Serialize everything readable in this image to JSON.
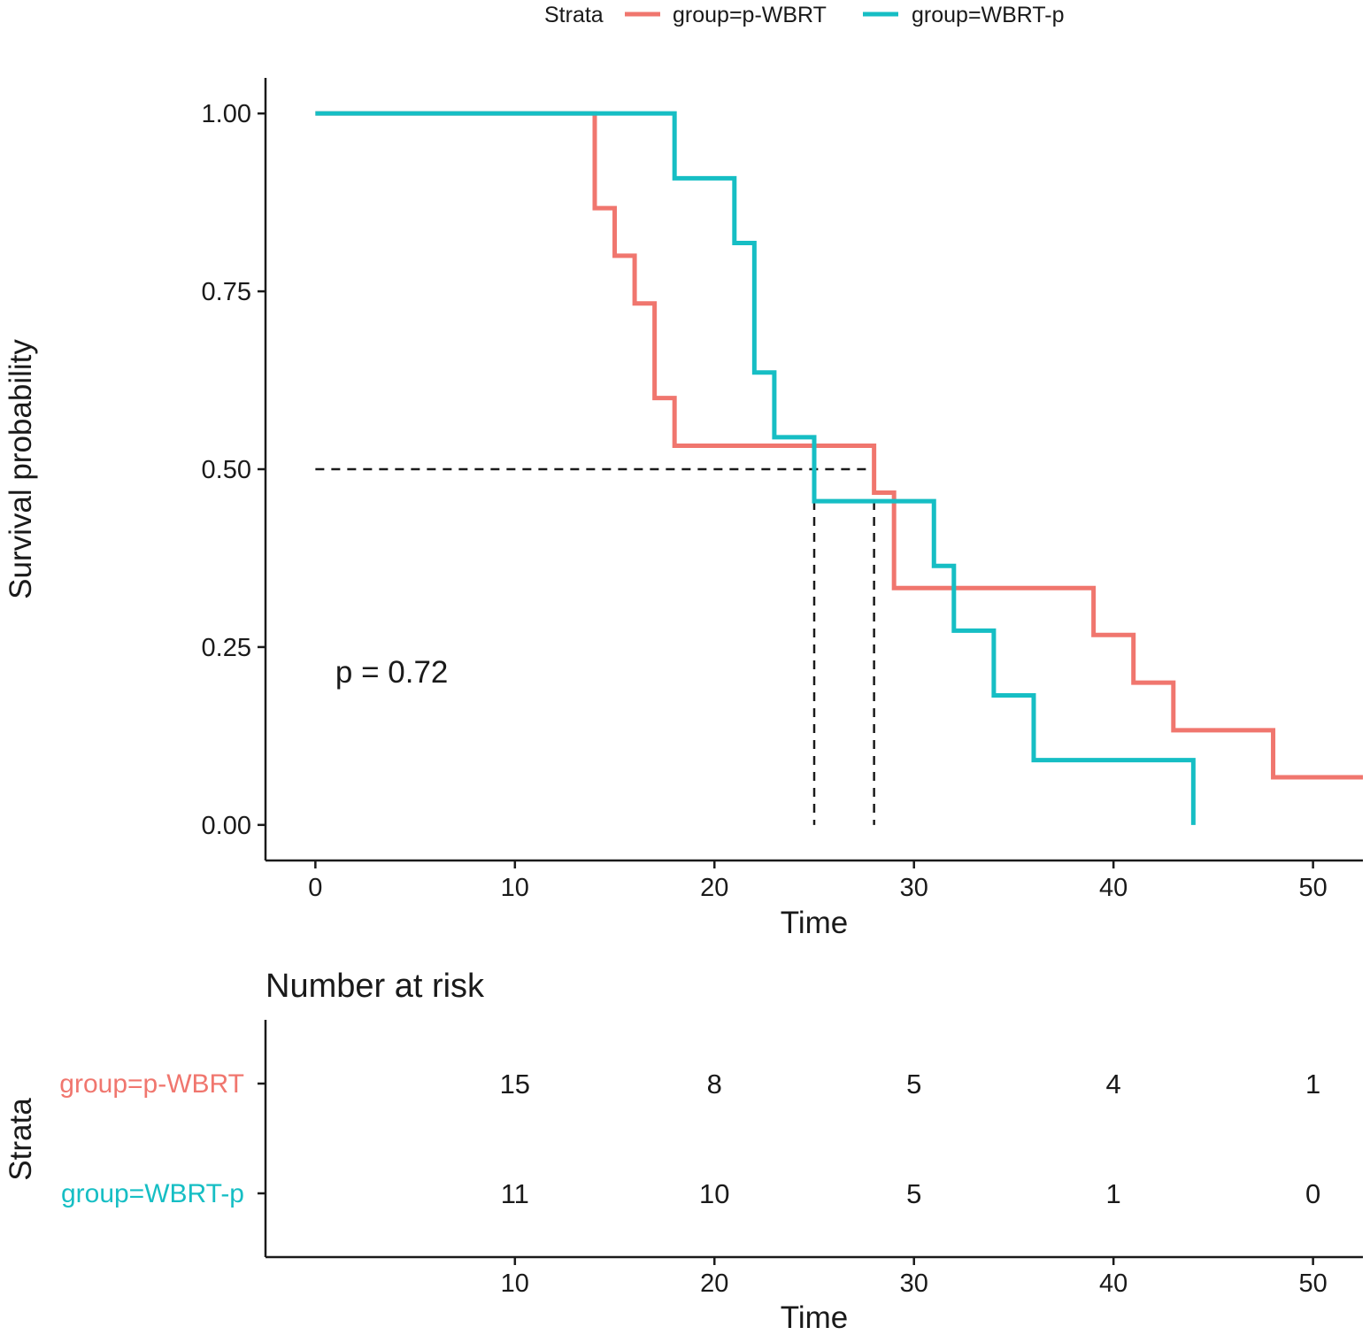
{
  "colors": {
    "p_wbrt": "#F0766E",
    "wbrt_p": "#16BEC4",
    "axis": "#1a1a1a",
    "median_line": "#1a1a1a"
  },
  "legend": {
    "title": "Strata",
    "entries": [
      "group=p-WBRT",
      "group=WBRT-p"
    ]
  },
  "chart_data": [
    {
      "type": "line",
      "subtype": "kaplan-meier-step",
      "xlabel": "Time",
      "ylabel": "Survival probability",
      "xlim": [
        -2.5,
        52.5
      ],
      "ylim": [
        -0.05,
        1.05
      ],
      "xticks": [
        0,
        10,
        20,
        30,
        40,
        50
      ],
      "xtick_labels": [
        "0",
        "10",
        "20",
        "30",
        "40",
        "50"
      ],
      "yticks": [
        0,
        0.25,
        0.5,
        0.75,
        1
      ],
      "ytick_labels": [
        "0.00",
        "0.25",
        "0.50",
        "0.75",
        "1.00"
      ],
      "grid": false,
      "legend_position": "top",
      "annotation": "p = 0.72",
      "annotation_at": [
        1,
        0.2
      ],
      "series": [
        {
          "name": "group=p-WBRT",
          "key": "p_wbrt",
          "steps": [
            [
              0,
              1.0
            ],
            [
              14,
              0.867
            ],
            [
              15,
              0.8
            ],
            [
              16,
              0.733
            ],
            [
              17,
              0.6
            ],
            [
              18,
              0.533
            ],
            [
              28,
              0.467
            ],
            [
              29,
              0.333
            ],
            [
              39,
              0.267
            ],
            [
              41,
              0.2
            ],
            [
              43,
              0.133
            ],
            [
              48,
              0.067
            ]
          ],
          "end_time": 52.5
        },
        {
          "name": "group=WBRT-p",
          "key": "wbrt_p",
          "steps": [
            [
              0,
              1.0
            ],
            [
              18,
              0.909
            ],
            [
              21,
              0.818
            ],
            [
              22,
              0.636
            ],
            [
              23,
              0.545
            ],
            [
              25,
              0.455
            ],
            [
              31,
              0.364
            ],
            [
              32,
              0.273
            ],
            [
              34,
              0.182
            ],
            [
              36,
              0.091
            ],
            [
              44,
              0.0
            ]
          ],
          "end_time": 44
        }
      ],
      "median_lines": {
        "y": 0.5,
        "times": [
          25,
          28
        ]
      }
    },
    {
      "type": "table",
      "title": "Number at risk",
      "xlabel": "Time",
      "ylabel": "Strata",
      "xlim": [
        -2.5,
        52.5
      ],
      "xticks": [
        10,
        20,
        30,
        40,
        50
      ],
      "xtick_labels": [
        "10",
        "20",
        "30",
        "40",
        "50"
      ],
      "rows": [
        {
          "label": "group=p-WBRT",
          "key": "p_wbrt",
          "values": [
            "15",
            "8",
            "5",
            "4",
            "1"
          ]
        },
        {
          "label": "group=WBRT-p",
          "key": "wbrt_p",
          "values": [
            "11",
            "10",
            "5",
            "1",
            "0"
          ]
        }
      ]
    }
  ]
}
